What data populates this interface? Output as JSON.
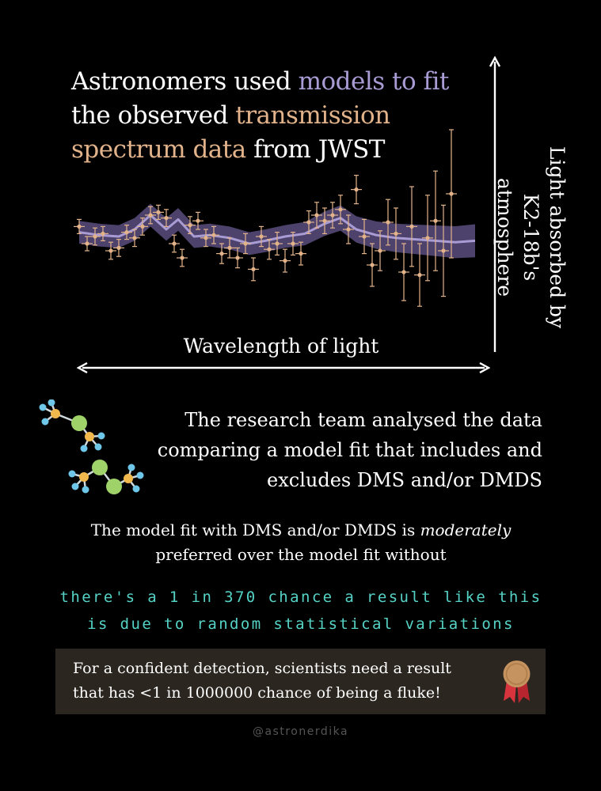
{
  "headline": {
    "part1": "Astronomers used ",
    "part2": "models to fit",
    "part3": " the observed ",
    "part4": "transmission spectrum data",
    "part5": " from JWST"
  },
  "colors": {
    "model": "#a99bd4",
    "data": "#e2b38a",
    "chance_text": "#55d3c6",
    "box_bg": "#2b2620"
  },
  "axes": {
    "y_label": "Light absorbed by K2-18b's atmosphere",
    "x_label": "Wavelength of light"
  },
  "chart_data": {
    "type": "scatter",
    "title": "",
    "xlabel": "Wavelength of light",
    "ylabel": "Light absorbed by K2-18b's atmosphere",
    "grid": false,
    "series": [
      {
        "values": [
          [
            0.0,
            0.52
          ],
          [
            0.02,
            0.4
          ],
          [
            0.04,
            0.45
          ],
          [
            0.06,
            0.47
          ],
          [
            0.08,
            0.35
          ],
          [
            0.1,
            0.37
          ],
          [
            0.12,
            0.48
          ],
          [
            0.14,
            0.44
          ],
          [
            0.16,
            0.52
          ],
          [
            0.18,
            0.6
          ],
          [
            0.2,
            0.62
          ],
          [
            0.22,
            0.58
          ],
          [
            0.24,
            0.4
          ],
          [
            0.26,
            0.3
          ],
          [
            0.28,
            0.53
          ],
          [
            0.3,
            0.56
          ],
          [
            0.32,
            0.44
          ],
          [
            0.34,
            0.46
          ],
          [
            0.36,
            0.33
          ],
          [
            0.38,
            0.37
          ],
          [
            0.4,
            0.3
          ],
          [
            0.42,
            0.4
          ],
          [
            0.44,
            0.22
          ],
          [
            0.46,
            0.45
          ],
          [
            0.48,
            0.36
          ],
          [
            0.5,
            0.4
          ],
          [
            0.52,
            0.28
          ],
          [
            0.54,
            0.4
          ],
          [
            0.56,
            0.33
          ],
          [
            0.58,
            0.55
          ],
          [
            0.6,
            0.6
          ],
          [
            0.62,
            0.56
          ],
          [
            0.64,
            0.6
          ],
          [
            0.66,
            0.64
          ],
          [
            0.68,
            0.5
          ],
          [
            0.7,
            0.78
          ],
          [
            0.72,
            0.45
          ],
          [
            0.74,
            0.25
          ],
          [
            0.76,
            0.35
          ],
          [
            0.78,
            0.55
          ],
          [
            0.8,
            0.47
          ],
          [
            0.82,
            0.2
          ],
          [
            0.84,
            0.52
          ],
          [
            0.86,
            0.18
          ],
          [
            0.88,
            0.44
          ],
          [
            0.9,
            0.56
          ],
          [
            0.92,
            0.35
          ],
          [
            0.94,
            0.75
          ]
        ],
        "yerr": [
          0.05,
          0.05,
          0.06,
          0.05,
          0.06,
          0.06,
          0.05,
          0.06,
          0.06,
          0.06,
          0.05,
          0.06,
          0.06,
          0.06,
          0.06,
          0.06,
          0.06,
          0.06,
          0.07,
          0.07,
          0.07,
          0.07,
          0.08,
          0.07,
          0.07,
          0.08,
          0.08,
          0.08,
          0.08,
          0.08,
          0.09,
          0.09,
          0.09,
          0.1,
          0.1,
          0.1,
          0.12,
          0.15,
          0.14,
          0.16,
          0.18,
          0.2,
          0.28,
          0.22,
          0.3,
          0.35,
          0.32,
          0.45
        ]
      }
    ],
    "model": {
      "x": [
        0.0,
        0.05,
        0.1,
        0.14,
        0.18,
        0.22,
        0.25,
        0.29,
        0.33,
        0.38,
        0.43,
        0.47,
        0.52,
        0.57,
        0.62,
        0.66,
        0.7,
        0.75,
        0.8,
        0.85,
        0.9,
        0.95,
        1.0
      ],
      "y": [
        0.48,
        0.46,
        0.45,
        0.5,
        0.6,
        0.5,
        0.57,
        0.45,
        0.46,
        0.44,
        0.4,
        0.42,
        0.45,
        0.47,
        0.54,
        0.58,
        0.5,
        0.46,
        0.44,
        0.43,
        0.42,
        0.41,
        0.42
      ]
    }
  },
  "analysis": {
    "text": "The research team analysed the data comparing a model fit that includes and excludes DMS and/or DMDS"
  },
  "preference": {
    "before": "The model fit with DMS and/or DMDS is ",
    "emph": "moderately",
    "after": " preferred over the model fit without"
  },
  "chance": {
    "line1": "there's a 1 in 370 chance a result like this",
    "line2": "is due to random statistical variations"
  },
  "callout": {
    "text": "For a confident detection, scientists need a result that has <1 in 1000000 chance of being a fluke!"
  },
  "icons": [
    "molecule-icon",
    "molecule-icon",
    "medal-icon"
  ],
  "credit": "@astronerdika"
}
